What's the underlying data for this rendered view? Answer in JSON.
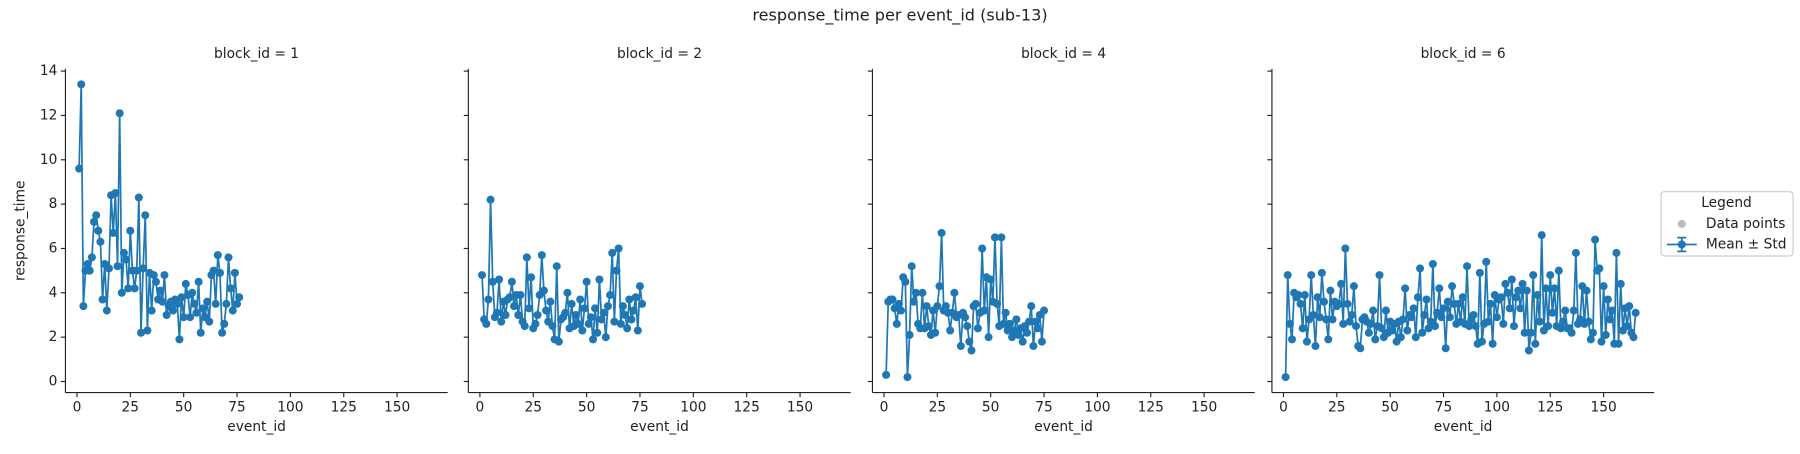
{
  "title": "response_time per event_id (sub-13)",
  "ylabel": "response_time",
  "legend": {
    "title": "Legend",
    "items": [
      {
        "name": "Data points",
        "color": "#bbbbbb"
      },
      {
        "name": "Mean ± Std",
        "color": "#1f77b4"
      }
    ]
  },
  "chart_data": [
    {
      "type": "line",
      "title": "block_id = 1",
      "xlabel": "event_id",
      "x": [
        1,
        2,
        3,
        4,
        5,
        6,
        7,
        8,
        9,
        10,
        11,
        12,
        13,
        14,
        15,
        16,
        17,
        18,
        19,
        20,
        21,
        22,
        23,
        24,
        25,
        26,
        27,
        28,
        29,
        30,
        31,
        32,
        33,
        34,
        35,
        36,
        37,
        38,
        39,
        40,
        41,
        42,
        43,
        44,
        45,
        46,
        47,
        48,
        49,
        50,
        51,
        52,
        53,
        54,
        55,
        56,
        57,
        58,
        59,
        60,
        61,
        62,
        63,
        64,
        65,
        66,
        67,
        68,
        69,
        70,
        71,
        72,
        73,
        74,
        75,
        76
      ],
      "series": [
        {
          "color": "#1f77b4",
          "values": [
            9.6,
            13.4,
            3.4,
            5.0,
            5.3,
            5.0,
            5.6,
            7.2,
            7.5,
            6.8,
            6.3,
            3.7,
            5.3,
            3.2,
            5.1,
            8.4,
            6.7,
            8.5,
            5.2,
            12.1,
            4.0,
            5.8,
            5.5,
            4.2,
            6.8,
            5.0,
            4.2,
            5.0,
            8.3,
            2.2,
            5.1,
            7.5,
            2.3,
            4.9,
            3.2,
            4.8,
            4.5,
            3.7,
            4.1,
            3.6,
            4.8,
            3.0,
            3.4,
            3.6,
            3.2,
            3.7,
            3.5,
            1.9,
            3.8,
            2.9,
            4.4,
            3.9,
            2.9,
            4.0,
            3.5,
            3.1,
            4.5,
            2.2,
            3.3,
            2.9,
            3.6,
            2.7,
            4.8,
            5.0,
            3.5,
            5.7,
            4.9,
            2.2,
            2.6,
            3.5,
            5.6,
            4.2,
            3.2,
            4.9,
            3.5,
            3.8
          ]
        }
      ],
      "xlim": [
        -5.4,
        173.7
      ],
      "xticks": [
        0,
        25,
        50,
        75,
        100,
        125,
        150
      ],
      "ylim": [
        -0.5,
        14.1
      ],
      "yticks": [
        0,
        2,
        4,
        6,
        8,
        10,
        12,
        14
      ],
      "show_ytick_labels": true
    },
    {
      "type": "line",
      "title": "block_id = 2",
      "xlabel": "event_id",
      "x": [
        1,
        2,
        3,
        4,
        5,
        6,
        7,
        8,
        9,
        10,
        11,
        12,
        13,
        14,
        15,
        16,
        17,
        18,
        19,
        20,
        21,
        22,
        23,
        24,
        25,
        26,
        27,
        28,
        29,
        30,
        31,
        32,
        33,
        34,
        35,
        36,
        37,
        38,
        39,
        40,
        41,
        42,
        43,
        44,
        45,
        46,
        47,
        48,
        49,
        50,
        51,
        52,
        53,
        54,
        55,
        56,
        57,
        58,
        59,
        60,
        61,
        62,
        63,
        64,
        65,
        66,
        67,
        68,
        69,
        70,
        71,
        72,
        73,
        74,
        75,
        76
      ],
      "series": [
        {
          "color": "#1f77b4",
          "values": [
            4.8,
            2.8,
            2.6,
            3.7,
            8.2,
            4.5,
            2.9,
            3.1,
            4.6,
            2.7,
            3.6,
            3.0,
            3.7,
            3.8,
            4.5,
            3.4,
            3.9,
            3.0,
            3.9,
            2.7,
            2.5,
            5.6,
            3.3,
            4.7,
            2.4,
            2.6,
            3.0,
            3.9,
            5.7,
            4.1,
            3.2,
            2.7,
            3.6,
            2.5,
            1.9,
            5.2,
            1.8,
            2.8,
            2.9,
            3.1,
            4.0,
            2.4,
            3.5,
            2.5,
            3.0,
            2.6,
            3.7,
            2.3,
            3.3,
            4.5,
            2.6,
            2.9,
            1.9,
            3.3,
            2.2,
            4.6,
            2.8,
            3.1,
            2.0,
            3.4,
            3.9,
            5.8,
            2.7,
            5.0,
            6.0,
            2.6,
            3.4,
            3.0,
            2.4,
            3.7,
            2.8,
            3.2,
            3.8,
            2.3,
            4.3,
            3.5
          ]
        }
      ],
      "xlim": [
        -5.4,
        173.7
      ],
      "xticks": [
        0,
        25,
        50,
        75,
        100,
        125,
        150
      ],
      "ylim": [
        -0.5,
        14.1
      ],
      "yticks": [
        0,
        2,
        4,
        6,
        8,
        10,
        12,
        14
      ],
      "show_ytick_labels": false
    },
    {
      "type": "line",
      "title": "block_id = 4",
      "xlabel": "event_id",
      "x": [
        1,
        2,
        3,
        4,
        5,
        6,
        7,
        8,
        9,
        10,
        11,
        12,
        13,
        14,
        15,
        16,
        17,
        18,
        19,
        20,
        21,
        22,
        23,
        24,
        25,
        26,
        27,
        28,
        29,
        30,
        31,
        32,
        33,
        34,
        35,
        36,
        37,
        38,
        39,
        40,
        41,
        42,
        43,
        44,
        45,
        46,
        47,
        48,
        49,
        50,
        51,
        52,
        53,
        54,
        55,
        56,
        57,
        58,
        59,
        60,
        61,
        62,
        63,
        64,
        65,
        66,
        67,
        68,
        69,
        70,
        71,
        72,
        73,
        74,
        75
      ],
      "series": [
        {
          "color": "#1f77b4",
          "values": [
            0.3,
            3.6,
            3.7,
            3.7,
            3.3,
            2.6,
            3.5,
            3.2,
            4.7,
            4.5,
            0.2,
            2.1,
            5.2,
            3.6,
            4.0,
            2.6,
            2.4,
            4.0,
            2.4,
            3.4,
            2.5,
            2.1,
            3.2,
            2.2,
            3.4,
            4.3,
            6.7,
            3.2,
            3.4,
            3.1,
            2.3,
            3.1,
            4.0,
            2.9,
            3.0,
            1.6,
            3.1,
            2.9,
            2.5,
            1.8,
            1.4,
            3.4,
            3.5,
            2.4,
            3.1,
            6.0,
            3.2,
            4.7,
            2.0,
            4.6,
            3.6,
            6.5,
            3.5,
            2.5,
            6.5,
            2.6,
            3.1,
            2.3,
            2.6,
            2.0,
            2.3,
            2.8,
            2.1,
            2.4,
            1.8,
            2.5,
            2.2,
            2.7,
            3.4,
            1.6,
            2.7,
            2.4,
            3.0,
            1.8,
            3.2
          ]
        }
      ],
      "xlim": [
        -5.4,
        173.7
      ],
      "xticks": [
        0,
        25,
        50,
        75,
        100,
        125,
        150
      ],
      "ylim": [
        -0.5,
        14.1
      ],
      "yticks": [
        0,
        2,
        4,
        6,
        8,
        10,
        12,
        14
      ],
      "show_ytick_labels": false
    },
    {
      "type": "line",
      "title": "block_id = 6",
      "xlabel": "event_id",
      "x": [
        1,
        2,
        3,
        4,
        5,
        6,
        7,
        8,
        9,
        10,
        11,
        12,
        13,
        14,
        15,
        16,
        17,
        18,
        19,
        20,
        21,
        22,
        23,
        24,
        25,
        26,
        27,
        28,
        29,
        30,
        31,
        32,
        33,
        34,
        35,
        36,
        37,
        38,
        39,
        40,
        41,
        42,
        43,
        44,
        45,
        46,
        47,
        48,
        49,
        50,
        51,
        52,
        53,
        54,
        55,
        56,
        57,
        58,
        59,
        60,
        61,
        62,
        63,
        64,
        65,
        66,
        67,
        68,
        69,
        70,
        71,
        72,
        73,
        74,
        75,
        76,
        77,
        78,
        79,
        80,
        81,
        82,
        83,
        84,
        85,
        86,
        87,
        88,
        89,
        90,
        91,
        92,
        93,
        94,
        95,
        96,
        97,
        98,
        99,
        100,
        101,
        102,
        103,
        104,
        105,
        106,
        107,
        108,
        109,
        110,
        111,
        112,
        113,
        114,
        115,
        116,
        117,
        118,
        119,
        120,
        121,
        122,
        123,
        124,
        125,
        126,
        127,
        128,
        129,
        130,
        131,
        132,
        133,
        134,
        135,
        136,
        137,
        138,
        139,
        140,
        141,
        142,
        143,
        144,
        145,
        146,
        147,
        148,
        149,
        150,
        151,
        152,
        153,
        154,
        155,
        156,
        157,
        158,
        159,
        160,
        161,
        162,
        163,
        164,
        165
      ],
      "series": [
        {
          "color": "#1f77b4",
          "values": [
            0.2,
            4.8,
            2.6,
            1.9,
            4.0,
            3.8,
            3.9,
            3.5,
            2.4,
            3.9,
            1.8,
            2.8,
            4.8,
            3.0,
            1.6,
            3.8,
            2.9,
            4.9,
            3.6,
            2.8,
            1.9,
            4.1,
            2.8,
            3.6,
            3.4,
            3.5,
            4.4,
            2.6,
            6.0,
            3.5,
            2.7,
            3.0,
            4.3,
            2.5,
            1.6,
            1.5,
            2.8,
            2.9,
            2.7,
            2.2,
            2.6,
            3.2,
            1.9,
            2.5,
            4.8,
            2.4,
            2.0,
            3.2,
            2.2,
            2.7,
            2.3,
            2.6,
            1.8,
            2.7,
            2.0,
            2.8,
            4.2,
            2.3,
            3.0,
            2.9,
            3.3,
            2.0,
            3.8,
            5.1,
            2.2,
            3.0,
            3.7,
            2.4,
            2.7,
            5.3,
            2.5,
            3.1,
            4.2,
            2.9,
            3.3,
            1.5,
            3.6,
            2.9,
            4.3,
            3.5,
            2.6,
            3.5,
            2.7,
            3.8,
            2.6,
            5.2,
            2.5,
            2.8,
            3.0,
            2.5,
            1.7,
            4.9,
            1.8,
            2.6,
            5.4,
            2.7,
            3.5,
            1.7,
            3.9,
            2.9,
            3.7,
            3.8,
            2.6,
            4.4,
            4.0,
            3.3,
            4.6,
            2.5,
            3.8,
            4.1,
            3.3,
            4.4,
            2.2,
            4.1,
            1.4,
            2.2,
            4.8,
            1.7,
            3.9,
            2.7,
            6.6,
            2.3,
            4.2,
            2.5,
            4.8,
            3.1,
            4.2,
            2.5,
            5.0,
            2.4,
            2.7,
            3.2,
            2.4,
            2.4,
            2.2,
            3.2,
            5.8,
            2.6,
            2.8,
            4.3,
            2.6,
            4.1,
            2.7,
            1.9,
            2.2,
            6.4,
            5.0,
            5.1,
            1.8,
            4.3,
            2.1,
            3.7,
            2.8,
            3.2,
            1.7,
            5.8,
            1.7,
            4.4,
            2.3,
            3.3,
            2.5,
            3.4,
            2.2,
            2.0,
            3.1
          ]
        }
      ],
      "xlim": [
        -5.4,
        173.7
      ],
      "xticks": [
        0,
        25,
        50,
        75,
        100,
        125,
        150
      ],
      "ylim": [
        -0.5,
        14.1
      ],
      "yticks": [
        0,
        2,
        4,
        6,
        8,
        10,
        12,
        14
      ],
      "show_ytick_labels": false
    }
  ]
}
